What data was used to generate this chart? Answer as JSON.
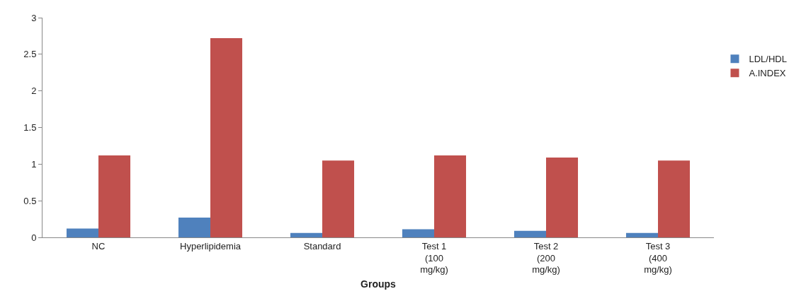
{
  "chart_data": {
    "type": "bar",
    "xlabel": "Groups",
    "categories": [
      "NC",
      "Hyperlipidemia",
      "Standard",
      "Test 1\n(100\nmg/kg)",
      "Test 2\n(200\nmg/kg)",
      "Test 3\n(400\nmg/kg)"
    ],
    "series": [
      {
        "name": "LDL/HDL",
        "color": "#4f81bd",
        "values": [
          0.12,
          0.27,
          0.06,
          0.11,
          0.09,
          0.06
        ]
      },
      {
        "name": "A.INDEX",
        "color": "#c0504d",
        "values": [
          1.12,
          2.72,
          1.05,
          1.12,
          1.09,
          1.05
        ]
      }
    ],
    "ylim": [
      0,
      3
    ],
    "yticks": [
      0,
      0.5,
      1,
      1.5,
      2,
      2.5,
      3
    ],
    "legend": "right"
  }
}
